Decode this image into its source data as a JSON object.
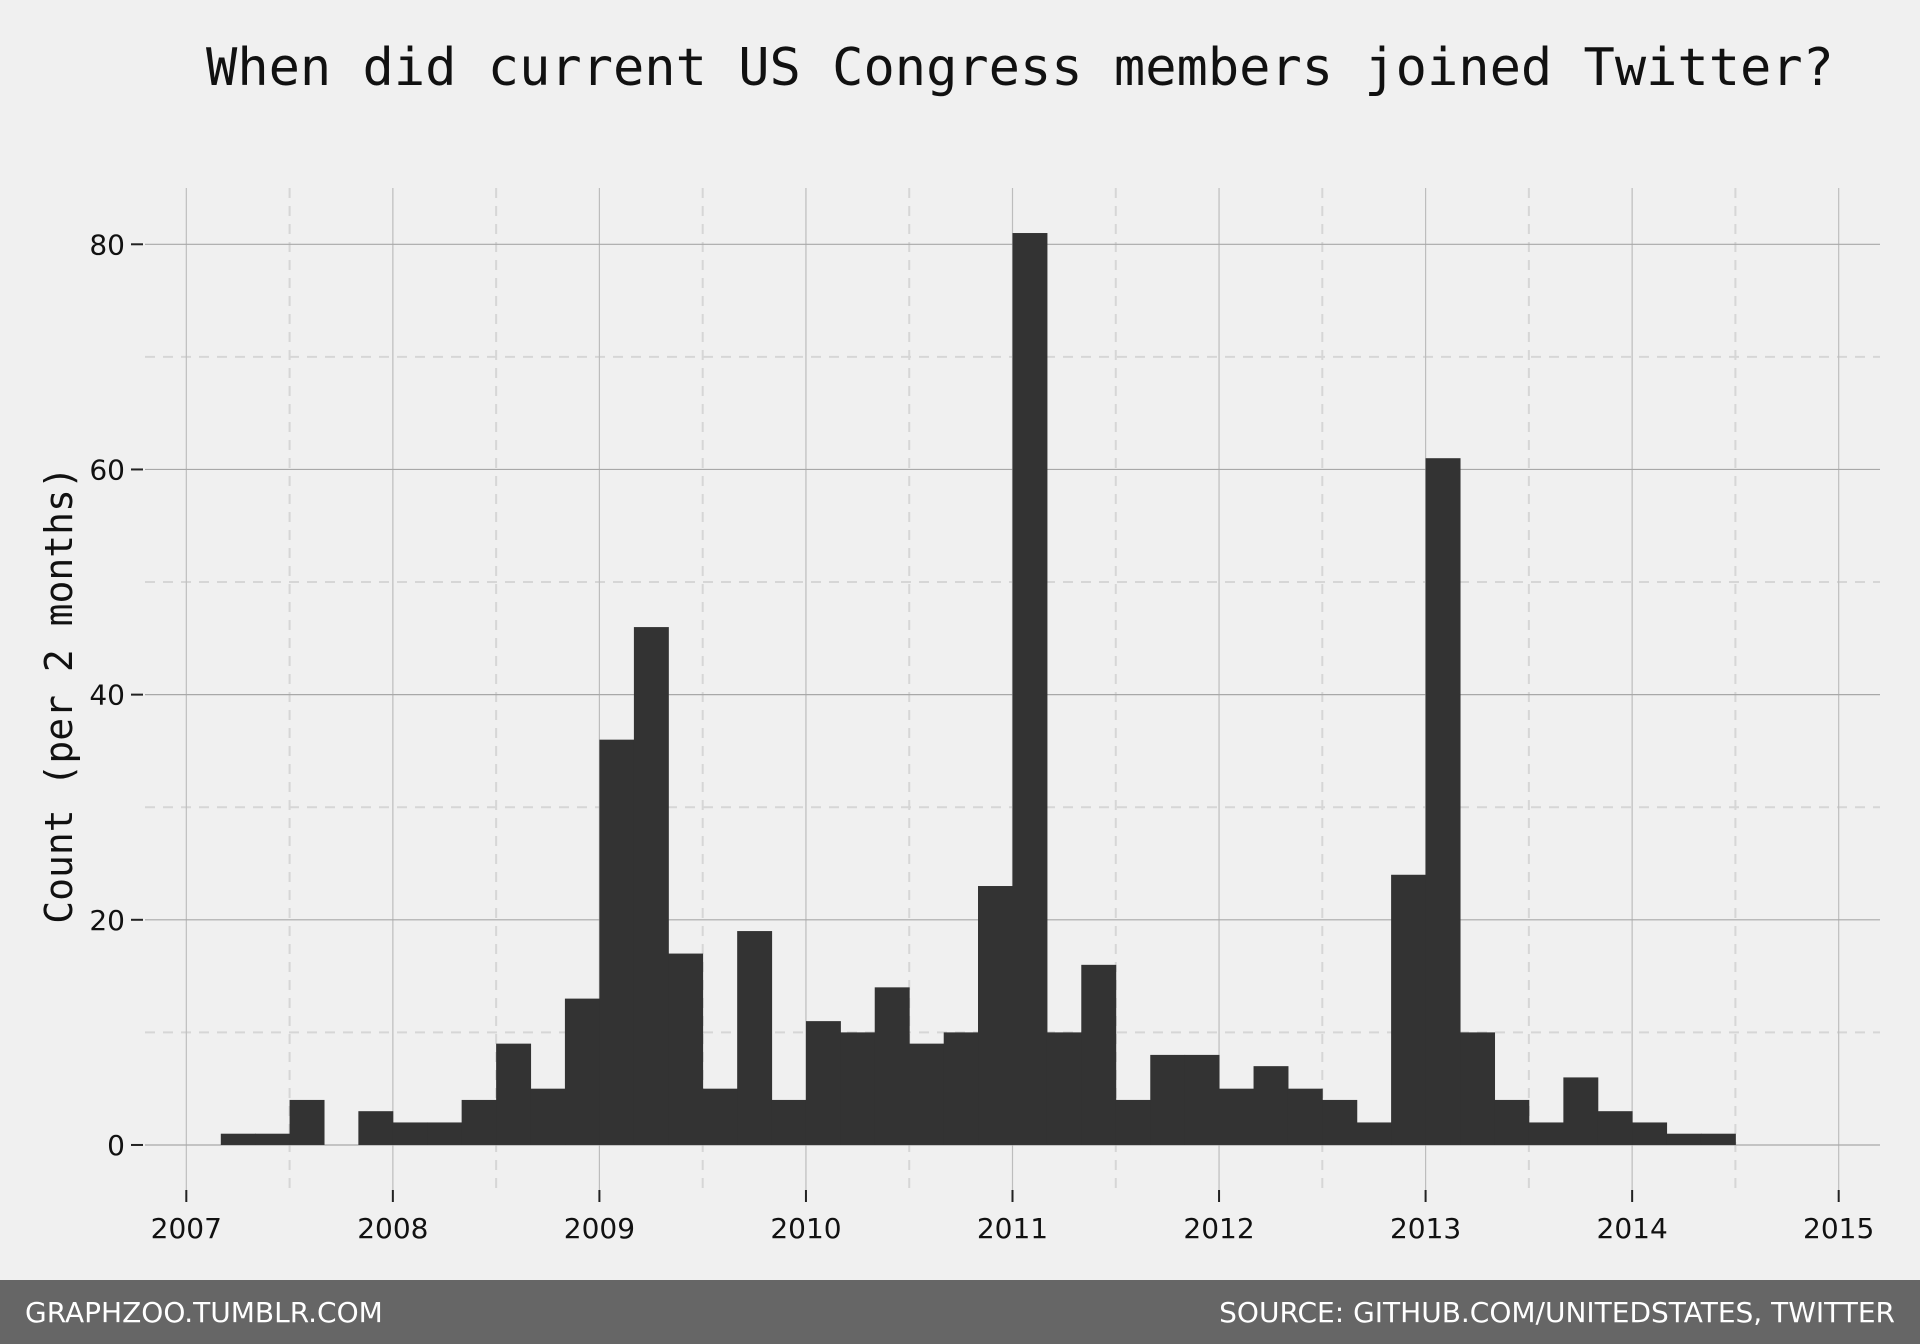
{
  "chart_data": {
    "type": "bar",
    "title": "When did current US Congress members joined Twitter?",
    "xlabel": "",
    "ylabel": "Count (per 2 months)",
    "xlim": [
      2006.8,
      2015.2
    ],
    "ylim": [
      -4,
      85
    ],
    "x_ticks": [
      2007,
      2008,
      2009,
      2010,
      2011,
      2012,
      2013,
      2014,
      2015
    ],
    "y_ticks": [
      0,
      20,
      40,
      60,
      80
    ],
    "bin_width_years": 0.1667,
    "bin_starts": [
      2007.167,
      2007.333,
      2007.5,
      2007.667,
      2007.833,
      2008.0,
      2008.167,
      2008.333,
      2008.5,
      2008.667,
      2008.833,
      2009.0,
      2009.167,
      2009.333,
      2009.5,
      2009.667,
      2009.833,
      2010.0,
      2010.167,
      2010.333,
      2010.5,
      2010.667,
      2010.833,
      2011.0,
      2011.167,
      2011.333,
      2011.5,
      2011.667,
      2011.833,
      2012.0,
      2012.167,
      2012.333,
      2012.5,
      2012.667,
      2012.833,
      2013.0,
      2013.167,
      2013.333,
      2013.5,
      2013.667,
      2013.833,
      2014.0,
      2014.167,
      2014.333
    ],
    "values": [
      1,
      1,
      4,
      0,
      3,
      2,
      2,
      4,
      9,
      5,
      13,
      36,
      46,
      17,
      5,
      19,
      4,
      11,
      10,
      14,
      9,
      10,
      23,
      81,
      10,
      16,
      4,
      8,
      8,
      5,
      7,
      5,
      4,
      2,
      24,
      61,
      10,
      4,
      2,
      6,
      3,
      2,
      1,
      1
    ],
    "grid": true,
    "bar_color": "#333333",
    "background": "#f0f0f0"
  },
  "footer": {
    "left": "GRAPHZOO.TUMBLR.COM",
    "right": "SOURCE: GITHUB.COM/UNITEDSTATES, TWITTER"
  }
}
